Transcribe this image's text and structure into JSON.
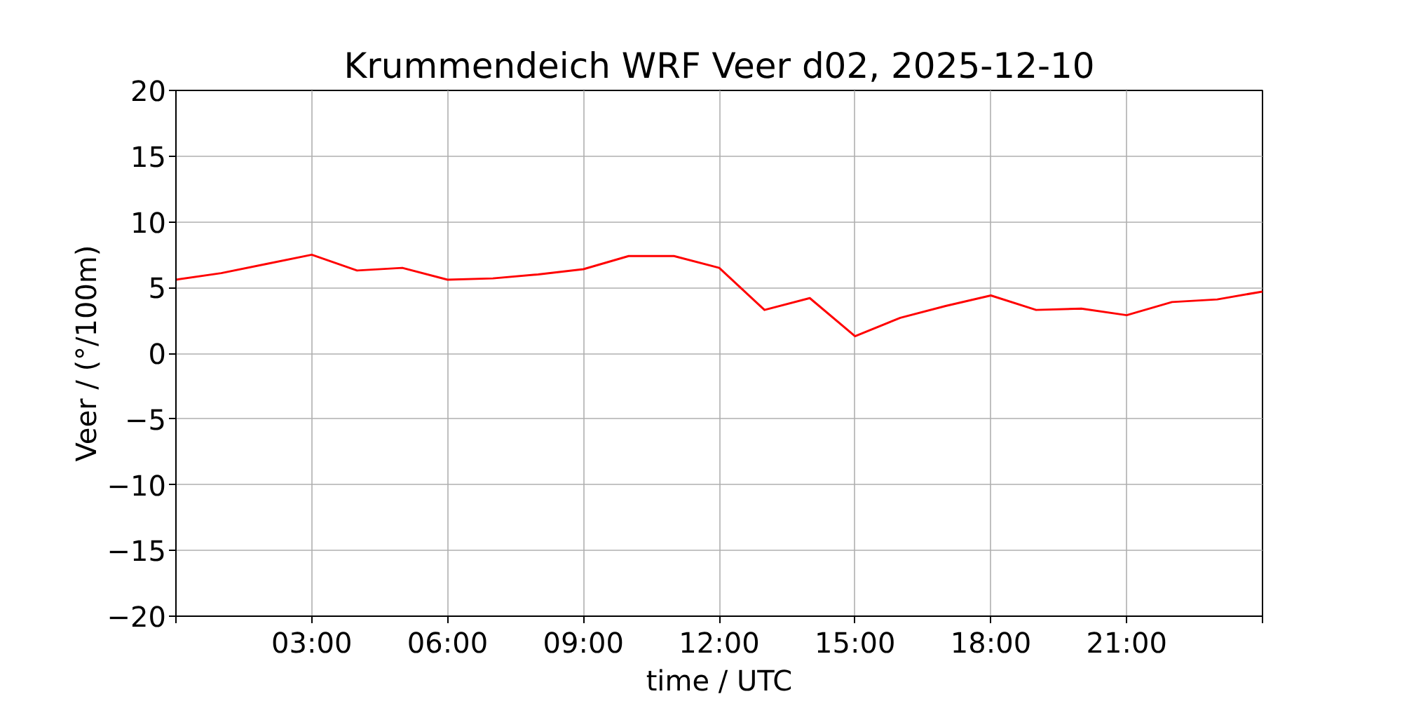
{
  "chart_data": {
    "type": "line",
    "title": "Krummendeich WRF Veer d02, 2025-12-10",
    "xlabel": "time / UTC",
    "ylabel": "Veer / (°/100m)",
    "x": [
      0,
      1,
      2,
      3,
      4,
      5,
      6,
      7,
      8,
      9,
      10,
      11,
      12,
      13,
      14,
      15,
      16,
      17,
      18,
      19,
      20,
      21,
      22,
      23,
      24
    ],
    "series": [
      {
        "color": "#ff0000",
        "values": [
          5.6,
          6.1,
          6.8,
          7.5,
          6.3,
          6.5,
          5.6,
          5.7,
          6.0,
          6.4,
          7.4,
          7.4,
          6.5,
          3.3,
          4.2,
          1.3,
          2.7,
          3.6,
          4.4,
          3.3,
          3.4,
          2.9,
          3.9,
          4.1,
          4.7
        ]
      }
    ],
    "xlim": [
      0,
      24
    ],
    "xticks": [
      {
        "value": 0,
        "label": null
      },
      {
        "value": 3,
        "label": "03:00"
      },
      {
        "value": 6,
        "label": "06:00"
      },
      {
        "value": 9,
        "label": "09:00"
      },
      {
        "value": 12,
        "label": "12:00"
      },
      {
        "value": 15,
        "label": "15:00"
      },
      {
        "value": 18,
        "label": "18:00"
      },
      {
        "value": 21,
        "label": "21:00"
      },
      {
        "value": 24,
        "label": null
      }
    ],
    "ylim": [
      -20,
      20
    ],
    "yticks": [
      -20,
      -15,
      -10,
      -5,
      0,
      5,
      10,
      15,
      20
    ],
    "grid": true,
    "marker": "none",
    "line_style": "solid"
  }
}
